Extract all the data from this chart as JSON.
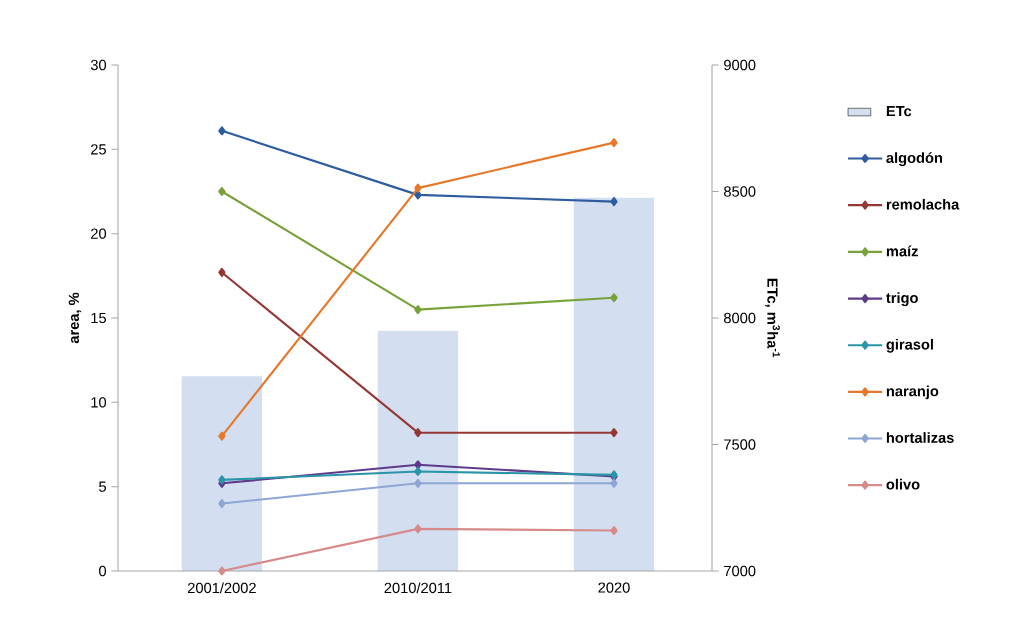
{
  "chart_data": {
    "type": "line",
    "categories": [
      "2001/2002",
      "2010/2011",
      "2020"
    ],
    "ylabel": "area, %",
    "y2label": "ETc, m$^{3}$ha$^{-1}$",
    "ylim": [
      0,
      30
    ],
    "yticks": [
      0,
      5,
      10,
      15,
      20,
      25,
      30
    ],
    "y2lim": [
      7000,
      9000
    ],
    "y2ticks": [
      7000,
      7500,
      8000,
      8500,
      9000
    ],
    "legend": "right",
    "marker": "diamond",
    "series": [
      {
        "name": "ETc",
        "type": "bar",
        "axis": "y2",
        "color": "#d3dff0",
        "values": [
          7770,
          7950,
          8475
        ]
      },
      {
        "name": "algodón",
        "color": "#2e5c9e",
        "values": [
          26.1,
          22.3,
          21.9
        ]
      },
      {
        "name": "remolacha",
        "color": "#953735",
        "values": [
          17.7,
          8.2,
          8.2
        ]
      },
      {
        "name": "maíz",
        "color": "#77a23a",
        "values": [
          22.5,
          15.5,
          16.2
        ]
      },
      {
        "name": "trigo",
        "color": "#5e3b8a",
        "values": [
          5.2,
          6.3,
          5.6
        ]
      },
      {
        "name": "girasol",
        "color": "#2a94a8",
        "values": [
          5.4,
          5.9,
          5.7
        ]
      },
      {
        "name": "naranjo",
        "color": "#e6782b",
        "values": [
          8.0,
          22.7,
          25.4
        ]
      },
      {
        "name": "hortalizas",
        "color": "#8ea6d4",
        "values": [
          4.0,
          5.2,
          5.2
        ]
      },
      {
        "name": "olivo",
        "color": "#d68a8a",
        "values": [
          0,
          2.5,
          2.4
        ]
      }
    ]
  }
}
